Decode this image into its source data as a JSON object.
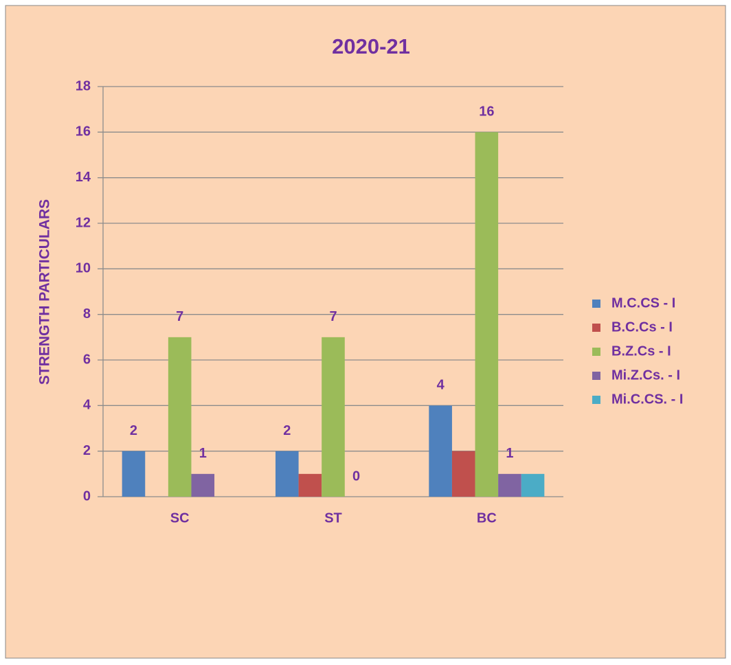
{
  "chart_data": {
    "type": "bar",
    "title": "2020-21",
    "y_label": "STRENGTH PARTICULARS",
    "categories": [
      "SC",
      "ST",
      "BC"
    ],
    "series": [
      {
        "name": "M.C.CS - I",
        "color": "#4f81bd",
        "values": [
          2,
          2,
          4
        ],
        "data_labels": true
      },
      {
        "name": "B.C.Cs - I",
        "color": "#c0504d",
        "values": [
          null,
          1,
          2
        ],
        "data_labels": false
      },
      {
        "name": "B.Z.Cs - I",
        "color": "#9bbb59",
        "values": [
          7,
          7,
          16
        ],
        "data_labels": true
      },
      {
        "name": "Mi.Z.Cs. - I",
        "color": "#8064a2",
        "values": [
          1,
          0,
          1
        ],
        "data_labels": true
      },
      {
        "name": "Mi.C.CS. - I",
        "color": "#4bacc6",
        "values": [
          null,
          null,
          1
        ],
        "data_labels": false
      }
    ],
    "ylim": [
      0,
      18
    ],
    "yticks": [
      0,
      2,
      4,
      6,
      8,
      10,
      12,
      14,
      16,
      18
    ],
    "grid": true,
    "legend": "right"
  }
}
